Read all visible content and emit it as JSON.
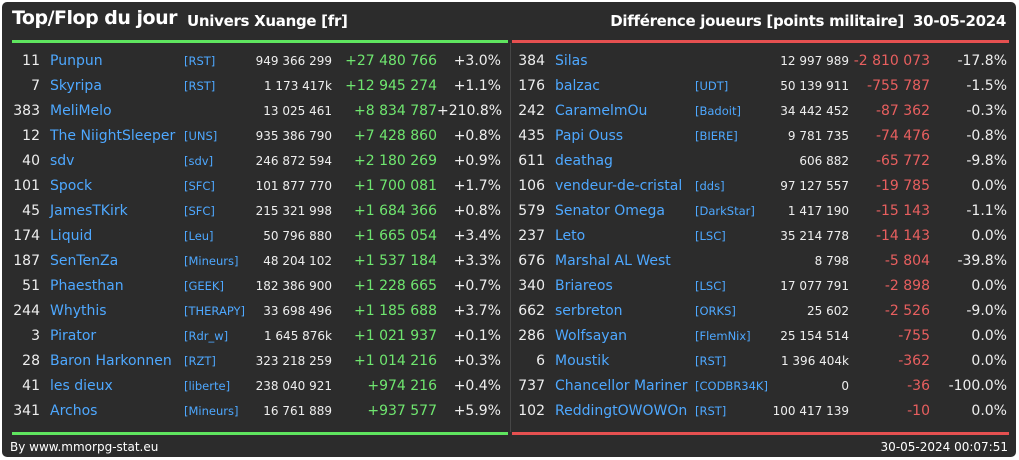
{
  "header": {
    "title": "Top/Flop du jour",
    "universe": "Univers Xuange [fr]",
    "category": "Différence joueurs [points militaire]",
    "date": "30-05-2024"
  },
  "top": [
    {
      "rank": "11",
      "name": "Punpun",
      "tag": "[RST]",
      "points": "949 366 299",
      "diff": "+27 480 766",
      "pct": "+3.0%"
    },
    {
      "rank": "7",
      "name": "Skyripa",
      "tag": "[RST]",
      "points": "1 173 417k",
      "diff": "+12 945 274",
      "pct": "+1.1%"
    },
    {
      "rank": "383",
      "name": "MeliMelo",
      "tag": "",
      "points": "13 025 461",
      "diff": "+8 834 787",
      "pct": "+210.8%"
    },
    {
      "rank": "12",
      "name": "The NiightSleeper",
      "tag": "[UNS]",
      "points": "935 386 790",
      "diff": "+7 428 860",
      "pct": "+0.8%"
    },
    {
      "rank": "40",
      "name": "sdv",
      "tag": "[sdv]",
      "points": "246 872 594",
      "diff": "+2 180 269",
      "pct": "+0.9%"
    },
    {
      "rank": "101",
      "name": "Spock",
      "tag": "[SFC]",
      "points": "101 877 770",
      "diff": "+1 700 081",
      "pct": "+1.7%"
    },
    {
      "rank": "45",
      "name": "JamesTKirk",
      "tag": "[SFC]",
      "points": "215 321 998",
      "diff": "+1 684 366",
      "pct": "+0.8%"
    },
    {
      "rank": "174",
      "name": "Liquid",
      "tag": "[Leu]",
      "points": "50 796 880",
      "diff": "+1 665 054",
      "pct": "+3.4%"
    },
    {
      "rank": "187",
      "name": "SenTenZa",
      "tag": "[Mineurs]",
      "points": "48 204 102",
      "diff": "+1 537 184",
      "pct": "+3.3%"
    },
    {
      "rank": "51",
      "name": "Phaesthan",
      "tag": "[GEEK]",
      "points": "182 386 900",
      "diff": "+1 228 665",
      "pct": "+0.7%"
    },
    {
      "rank": "244",
      "name": "Whythis",
      "tag": "[THERAPY]",
      "points": "33 698 496",
      "diff": "+1 185 688",
      "pct": "+3.7%"
    },
    {
      "rank": "3",
      "name": "Pirator",
      "tag": "[Rdr_w]",
      "points": "1 645 876k",
      "diff": "+1 021 937",
      "pct": "+0.1%"
    },
    {
      "rank": "28",
      "name": "Baron Harkonnen",
      "tag": "[RZT]",
      "points": "323 218 259",
      "diff": "+1 014 216",
      "pct": "+0.3%"
    },
    {
      "rank": "41",
      "name": "les dieux",
      "tag": "[liberte]",
      "points": "238 040 921",
      "diff": "+974 216",
      "pct": "+0.4%"
    },
    {
      "rank": "341",
      "name": "Archos",
      "tag": "[Mineurs]",
      "points": "16 761 889",
      "diff": "+937 577",
      "pct": "+5.9%"
    }
  ],
  "flop": [
    {
      "rank": "384",
      "name": "Silas",
      "tag": "",
      "points": "12 997 989",
      "diff": "-2 810 073",
      "pct": "-17.8%"
    },
    {
      "rank": "176",
      "name": "balzac",
      "tag": "[UDT]",
      "points": "50 139 911",
      "diff": "-755 787",
      "pct": "-1.5%"
    },
    {
      "rank": "242",
      "name": "CaramelmOu",
      "tag": "[Badoit]",
      "points": "34 442 452",
      "diff": "-87 362",
      "pct": "-0.3%"
    },
    {
      "rank": "435",
      "name": "Papi Ouss",
      "tag": "[BIERE]",
      "points": "9 781 735",
      "diff": "-74 476",
      "pct": "-0.8%"
    },
    {
      "rank": "611",
      "name": "deathag",
      "tag": "",
      "points": "606 882",
      "diff": "-65 772",
      "pct": "-9.8%"
    },
    {
      "rank": "106",
      "name": "vendeur-de-cristal",
      "tag": "[dds]",
      "points": "97 127 557",
      "diff": "-19 785",
      "pct": "0.0%"
    },
    {
      "rank": "579",
      "name": "Senator Omega",
      "tag": "[DarkStar]",
      "points": "1 417 190",
      "diff": "-15 143",
      "pct": "-1.1%"
    },
    {
      "rank": "237",
      "name": "Leto",
      "tag": "[LSC]",
      "points": "35 214 778",
      "diff": "-14 143",
      "pct": "0.0%"
    },
    {
      "rank": "676",
      "name": "Marshal AL West",
      "tag": "",
      "points": "8 798",
      "diff": "-5 804",
      "pct": "-39.8%"
    },
    {
      "rank": "340",
      "name": "Briareos",
      "tag": "[LSC]",
      "points": "17 077 791",
      "diff": "-2 898",
      "pct": "0.0%"
    },
    {
      "rank": "662",
      "name": "serbreton",
      "tag": "[ORKS]",
      "points": "25 602",
      "diff": "-2 526",
      "pct": "-9.0%"
    },
    {
      "rank": "286",
      "name": "Wolfsayan",
      "tag": "[FlemNix]",
      "points": "25 154 514",
      "diff": "-755",
      "pct": "0.0%"
    },
    {
      "rank": "6",
      "name": "Moustik",
      "tag": "[RST]",
      "points": "1 396 404k",
      "diff": "-362",
      "pct": "0.0%"
    },
    {
      "rank": "737",
      "name": "Chancellor Mariner",
      "tag": "[CODBR34K]",
      "points": "0",
      "diff": "-36",
      "pct": "-100.0%"
    },
    {
      "rank": "102",
      "name": "ReddingtOWOWOn",
      "tag": "[RST]",
      "points": "100 417 139",
      "diff": "-10",
      "pct": "0.0%"
    }
  ],
  "footer": {
    "credit": "By www.mmorpg-stat.eu",
    "timestamp": "30-05-2024 00:07:51"
  },
  "colors": {
    "background": "#2c2c2c",
    "top_accent": "#5fe55f",
    "flop_accent": "#e55050",
    "link": "#4ea8ff"
  }
}
